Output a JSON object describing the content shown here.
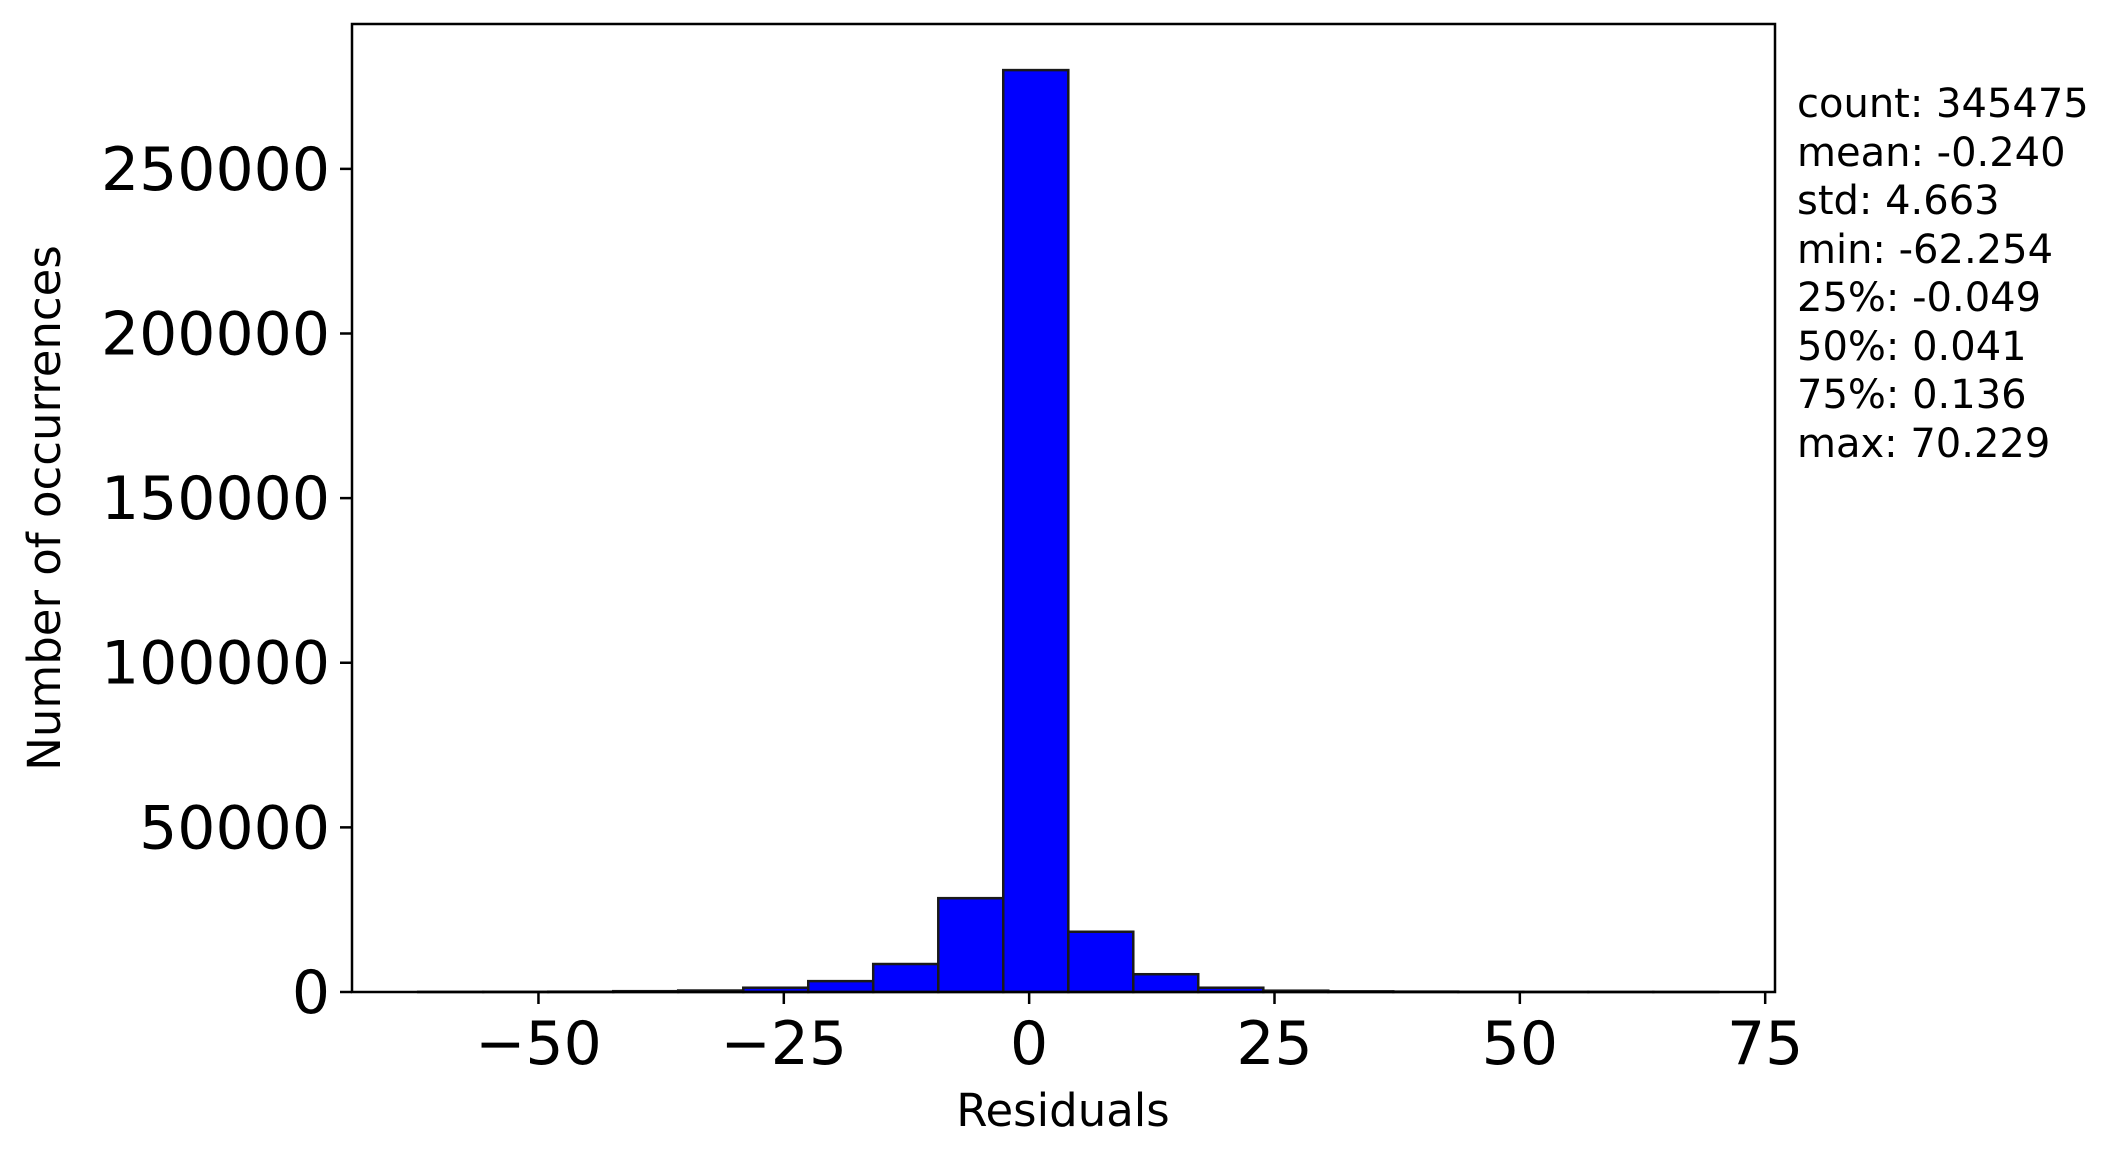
{
  "chart_data": {
    "type": "bar",
    "xlabel": "Residuals",
    "ylabel": "Number of occurrences",
    "xlim": [
      -69,
      76
    ],
    "ylim": [
      0,
      294000
    ],
    "xticks": [
      -50,
      -25,
      0,
      25,
      50,
      75
    ],
    "xtick_labels": [
      "−50",
      "−25",
      "0",
      "25",
      "50",
      "75"
    ],
    "yticks": [
      0,
      50000,
      100000,
      150000,
      200000,
      250000
    ],
    "ytick_labels": [
      "0",
      "50000",
      "100000",
      "150000",
      "200000",
      "250000"
    ],
    "grid": false,
    "bar_color": "#0000ff",
    "edge_color": "#1a1a1a",
    "bins": [
      {
        "x0": -62.254,
        "x1": -55.63,
        "count": 30
      },
      {
        "x0": -55.63,
        "x1": -49.0,
        "count": 50
      },
      {
        "x0": -49.0,
        "x1": -42.38,
        "count": 100
      },
      {
        "x0": -42.38,
        "x1": -35.76,
        "count": 250
      },
      {
        "x0": -35.76,
        "x1": -29.13,
        "count": 450
      },
      {
        "x0": -29.13,
        "x1": -22.51,
        "count": 1300
      },
      {
        "x0": -22.51,
        "x1": -15.89,
        "count": 3300
      },
      {
        "x0": -15.89,
        "x1": -9.26,
        "count": 8500
      },
      {
        "x0": -9.26,
        "x1": -2.64,
        "count": 28500
      },
      {
        "x0": -2.64,
        "x1": 3.99,
        "count": 280000
      },
      {
        "x0": 3.99,
        "x1": 10.61,
        "count": 18300
      },
      {
        "x0": 10.61,
        "x1": 17.23,
        "count": 5400
      },
      {
        "x0": 17.23,
        "x1": 23.86,
        "count": 1300
      },
      {
        "x0": 23.86,
        "x1": 30.48,
        "count": 400
      },
      {
        "x0": 30.48,
        "x1": 37.1,
        "count": 200
      },
      {
        "x0": 37.1,
        "x1": 43.73,
        "count": 120
      },
      {
        "x0": 43.73,
        "x1": 50.35,
        "count": 60
      },
      {
        "x0": 50.35,
        "x1": 56.98,
        "count": 30
      },
      {
        "x0": 56.98,
        "x1": 63.6,
        "count": 15
      },
      {
        "x0": 63.6,
        "x1": 70.229,
        "count": 10
      }
    ]
  },
  "stats": [
    "count: 345475",
    "mean: -0.240",
    "std: 4.663",
    "min: -62.254",
    "25%: -0.049",
    "50%: 0.041",
    "75%: 0.136",
    "max: 70.229"
  ]
}
